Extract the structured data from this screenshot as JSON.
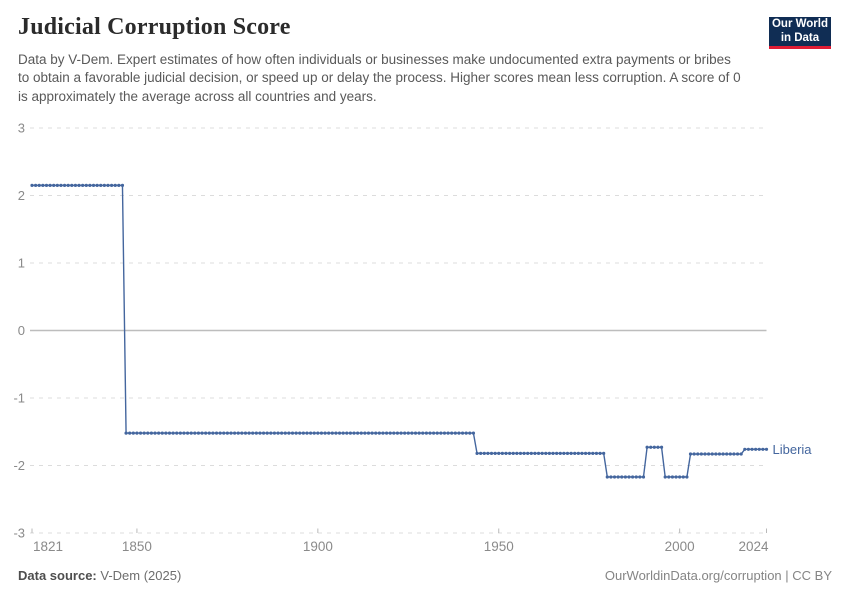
{
  "header": {
    "title": "Judicial Corruption Score",
    "subtitle": "Data by V-Dem. Expert estimates of how often individuals or businesses make undocumented extra payments or bribes to obtain a favorable judicial decision, or speed up or delay the process. Higher scores mean less corruption. A score of 0 is approximately the average across all countries and years.",
    "logo": {
      "line1": "Our World",
      "line2": "in Data",
      "bg_color": "#102d54",
      "accent_color": "#e01c34"
    }
  },
  "chart_data": {
    "type": "line",
    "title": "Judicial Corruption Score",
    "entity": "Liberia",
    "xlabel": "",
    "ylabel": "",
    "xlim": [
      1821,
      2024
    ],
    "ylim": [
      -3,
      3
    ],
    "grid": true,
    "legend_position": "end-of-line",
    "x_ticks": [
      1821,
      1850,
      1900,
      1950,
      2000,
      2024
    ],
    "y_ticks": [
      3,
      2,
      1,
      0,
      -1,
      -2,
      -3
    ],
    "line_color": "#44669e",
    "axis_text_color": "#8a8a8a",
    "grid_color": "#dcdcdc",
    "zero_line_color": "#bdbdbd",
    "step_segments": [
      {
        "start_year": 1821,
        "end_year": 1846,
        "value": 2.15
      },
      {
        "start_year": 1847,
        "end_year": 1943,
        "value": -1.52
      },
      {
        "start_year": 1944,
        "end_year": 1979,
        "value": -1.82
      },
      {
        "start_year": 1980,
        "end_year": 1990,
        "value": -2.17
      },
      {
        "start_year": 1991,
        "end_year": 1995,
        "value": -1.73
      },
      {
        "start_year": 1996,
        "end_year": 2002,
        "value": -2.17
      },
      {
        "start_year": 2003,
        "end_year": 2017,
        "value": -1.83
      },
      {
        "start_year": 2018,
        "end_year": 2024,
        "value": -1.76
      }
    ]
  },
  "footer": {
    "source_label": "Data source:",
    "source_value": "V-Dem (2025)",
    "credit": "OurWorldinData.org/corruption | CC BY"
  }
}
